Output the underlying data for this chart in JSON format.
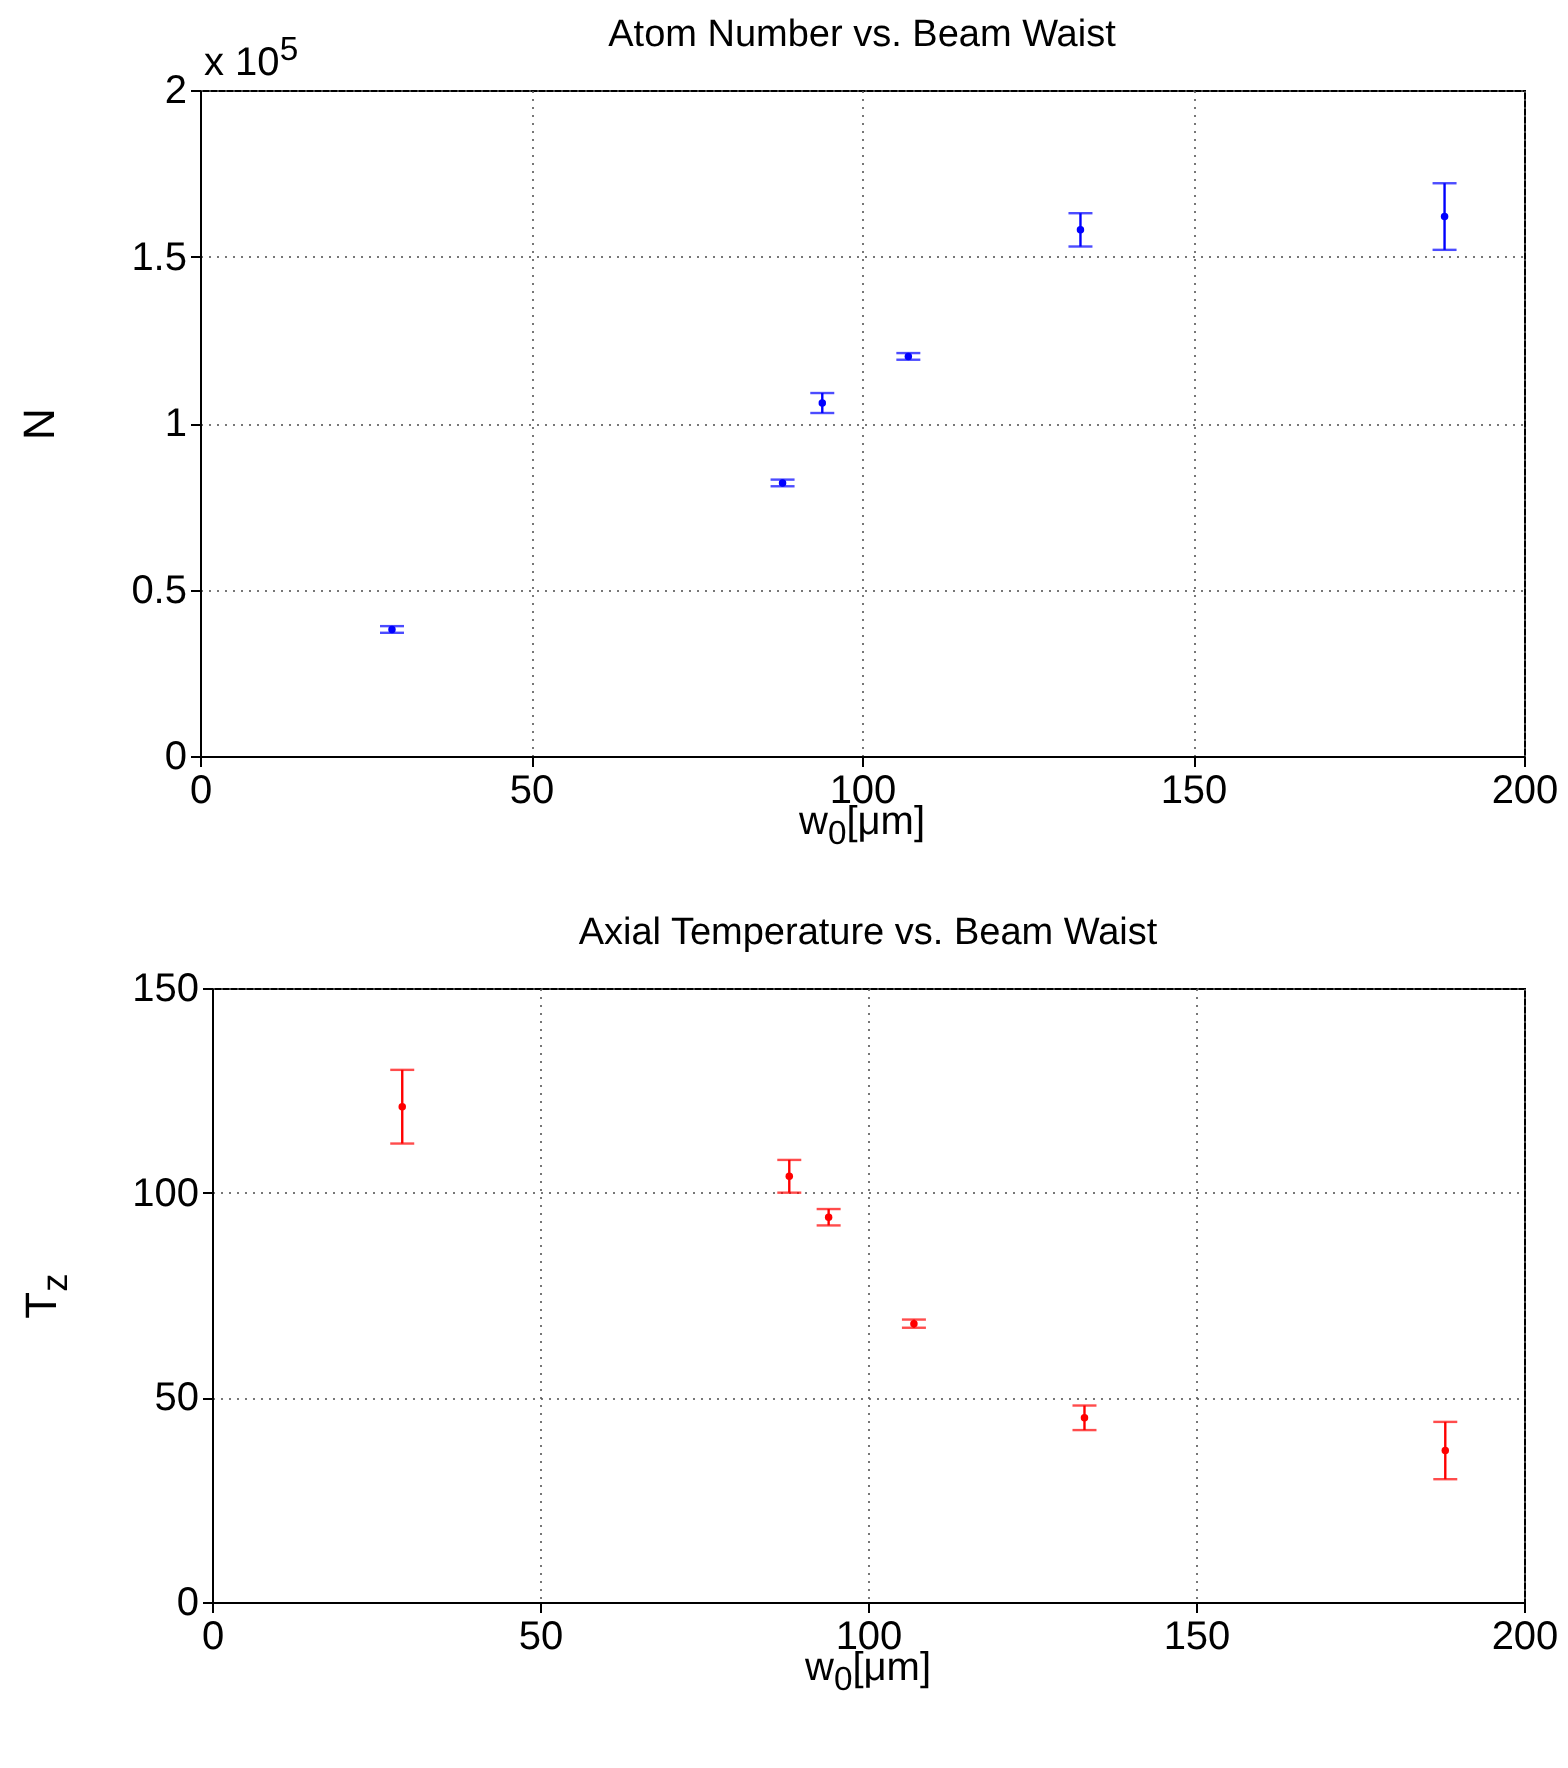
{
  "chart_data": [
    {
      "type": "scatter",
      "title": "Atom Number vs. Beam Waist",
      "xlabel": "w$_{0}$[μm]",
      "ylabel": "N",
      "annotations": [
        "x 10$^{5}$"
      ],
      "x": [
        29,
        88,
        94,
        107,
        133,
        188
      ],
      "series": [
        {
          "color": "#0000ff",
          "values": [
            0.38,
            0.82,
            1.06,
            1.2,
            1.58,
            1.62
          ],
          "errors": [
            0.01,
            0.01,
            0.03,
            0.01,
            0.05,
            0.1
          ]
        }
      ],
      "xlim": [
        0,
        200
      ],
      "xticks": [
        0,
        50,
        100,
        150,
        200
      ],
      "ylim": [
        0,
        2
      ],
      "yticks": [
        0,
        0.5,
        1,
        1.5,
        2
      ],
      "grid": true,
      "marker": "circle"
    },
    {
      "type": "scatter",
      "title": "Axial Temperature vs. Beam Waist",
      "xlabel": "w$_{0}$[μm]",
      "ylabel": "T$_{z}$",
      "x": [
        29,
        88,
        94,
        107,
        133,
        188
      ],
      "series": [
        {
          "color": "#ff0000",
          "values": [
            121,
            104,
            94,
            68,
            45,
            37
          ],
          "errors": [
            9,
            4,
            2,
            1,
            3,
            7
          ]
        }
      ],
      "xlim": [
        0,
        200
      ],
      "xticks": [
        0,
        50,
        100,
        150,
        200
      ],
      "ylim": [
        0,
        150
      ],
      "yticks": [
        0,
        50,
        100,
        150
      ],
      "grid": true,
      "marker": "circle"
    }
  ]
}
